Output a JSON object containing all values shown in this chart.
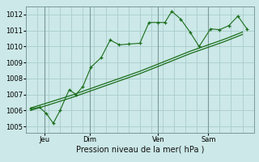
{
  "bg_color": "#cce8e8",
  "grid_color": "#aacccc",
  "line_color": "#1a6e1a",
  "title": "Pression niveau de la mer( hPa )",
  "ylabel_ticks": [
    1005,
    1006,
    1007,
    1008,
    1009,
    1010,
    1011,
    1012
  ],
  "ylim": [
    1004.6,
    1012.5
  ],
  "xlim": [
    0.0,
    10.0
  ],
  "day_labels": [
    "Jeu",
    "Dim",
    "Ven",
    "Sam"
  ],
  "day_positions": [
    0.8,
    2.8,
    5.8,
    8.0
  ],
  "vline_positions": [
    0.8,
    2.8,
    5.8,
    8.0
  ],
  "line1_x": [
    0.2,
    0.6,
    0.9,
    1.2,
    1.5,
    1.9,
    2.2,
    2.5,
    2.85,
    3.3,
    3.7,
    4.1,
    4.5,
    5.0,
    5.4,
    5.8,
    6.1,
    6.4,
    6.8,
    7.2,
    7.6,
    8.1,
    8.5,
    8.9,
    9.3,
    9.7
  ],
  "line1_y": [
    1006.1,
    1006.2,
    1005.8,
    1005.2,
    1006.0,
    1007.3,
    1007.0,
    1007.5,
    1008.7,
    1009.3,
    1010.4,
    1010.1,
    1010.15,
    1010.2,
    1011.5,
    1011.5,
    1011.5,
    1012.2,
    1011.7,
    1010.9,
    1010.0,
    1011.1,
    1011.05,
    1011.3,
    1011.9,
    1011.1
  ],
  "line2_x": [
    0.2,
    1.0,
    2.0,
    2.8,
    3.5,
    4.3,
    5.0,
    5.8,
    6.5,
    7.2,
    8.0,
    8.7,
    9.5
  ],
  "line2_y": [
    1006.0,
    1006.35,
    1006.8,
    1007.2,
    1007.55,
    1007.95,
    1008.3,
    1008.75,
    1009.15,
    1009.55,
    1009.95,
    1010.3,
    1010.75
  ],
  "line3_x": [
    0.2,
    1.0,
    2.0,
    2.8,
    3.5,
    4.3,
    5.0,
    5.8,
    6.5,
    7.2,
    8.0,
    8.7,
    9.5
  ],
  "line3_y": [
    1006.15,
    1006.5,
    1006.95,
    1007.35,
    1007.7,
    1008.1,
    1008.45,
    1008.9,
    1009.3,
    1009.7,
    1010.1,
    1010.45,
    1010.9
  ]
}
